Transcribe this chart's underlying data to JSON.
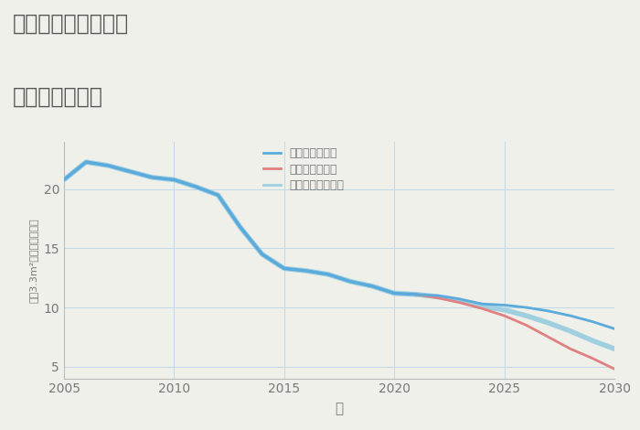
{
  "title_line1": "三重県伊賀市上郡の",
  "title_line2": "土地の価格推移",
  "xlabel": "年",
  "ylabel": "坪（3.3m²）単価（万円）",
  "background_color": "#f0f0eb",
  "plot_background": "#f0f0eb",
  "legend": [
    "グッドシナリオ",
    "バッドシナリオ",
    "ノーマルシナリオ"
  ],
  "colors": {
    "good": "#5aaadc",
    "bad": "#e08080",
    "normal": "#a0cfe0"
  },
  "years_hist": [
    2005,
    2006,
    2007,
    2008,
    2009,
    2010,
    2011,
    2012,
    2013,
    2014,
    2015,
    2016,
    2017,
    2018,
    2019,
    2020,
    2021
  ],
  "values_hist": [
    20.8,
    22.3,
    22.0,
    21.5,
    21.0,
    20.8,
    20.2,
    19.5,
    16.8,
    14.5,
    13.3,
    13.1,
    12.8,
    12.2,
    11.8,
    11.2,
    11.1
  ],
  "years_good": [
    2021,
    2022,
    2023,
    2024,
    2025,
    2026,
    2027,
    2028,
    2029,
    2030
  ],
  "values_good": [
    11.1,
    11.0,
    10.7,
    10.3,
    10.2,
    10.0,
    9.7,
    9.3,
    8.8,
    8.2
  ],
  "years_bad": [
    2021,
    2022,
    2023,
    2024,
    2025,
    2026,
    2027,
    2028,
    2029,
    2030
  ],
  "values_bad": [
    11.1,
    10.8,
    10.4,
    9.9,
    9.3,
    8.5,
    7.5,
    6.5,
    5.7,
    4.8
  ],
  "years_normal": [
    2021,
    2022,
    2023,
    2024,
    2025,
    2026,
    2027,
    2028,
    2029,
    2030
  ],
  "values_normal": [
    11.1,
    10.9,
    10.6,
    10.1,
    9.8,
    9.3,
    8.7,
    8.0,
    7.2,
    6.5
  ],
  "xlim": [
    2005,
    2030
  ],
  "ylim": [
    4,
    24
  ],
  "yticks": [
    5,
    10,
    15,
    20
  ],
  "xticks": [
    2005,
    2010,
    2015,
    2020,
    2025,
    2030
  ],
  "grid_color": "#c0d8e8",
  "title_color": "#555555",
  "tick_color": "#777777",
  "line_width": 2.0
}
